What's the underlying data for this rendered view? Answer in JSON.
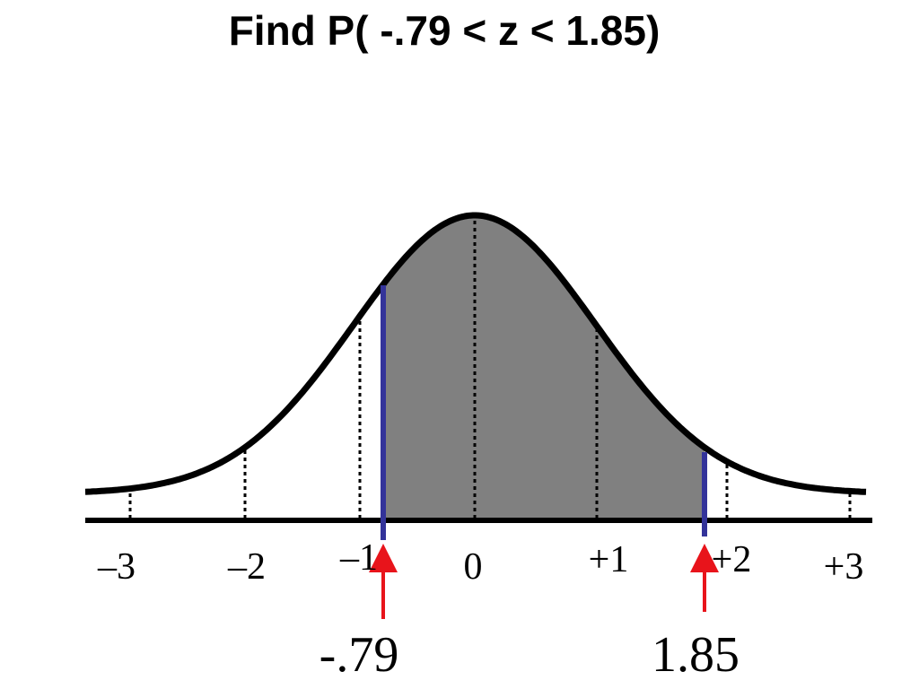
{
  "title": "Find P( -.79 < z < 1.85)",
  "axis_labels": [
    "–3",
    "–2",
    "–1",
    "0",
    "+1",
    "+2",
    "+3"
  ],
  "markers": [
    {
      "label": "-.79"
    },
    {
      "label": "1.85"
    }
  ]
}
